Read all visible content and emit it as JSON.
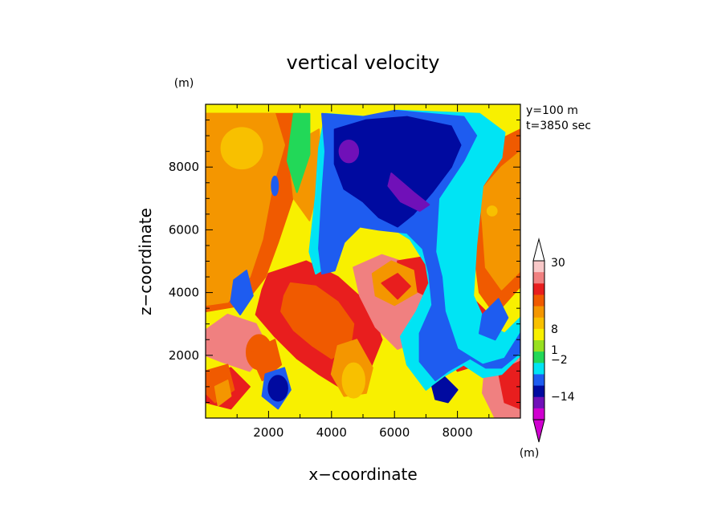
{
  "chart_data": {
    "type": "heatmap",
    "title": "vertical velocity",
    "xlabel": "x−coordinate",
    "ylabel": "z−coordinate",
    "x_unit": "(m)",
    "y_unit": "(m)",
    "annotations": [
      "y=100 m",
      "t=3850 sec"
    ],
    "xlim": [
      0,
      10000
    ],
    "ylim": [
      0,
      10000
    ],
    "xticks": [
      2000,
      4000,
      6000,
      8000
    ],
    "yticks": [
      2000,
      4000,
      6000,
      8000
    ],
    "grid": false,
    "colorbar": {
      "placement": "right",
      "unit": "(m)",
      "tick_labels": [
        "30",
        "8",
        "1",
        "−2",
        "−14"
      ],
      "colors_top_to_bottom": [
        "#f8c8c8",
        "#f08080",
        "#e81e1e",
        "#f05a00",
        "#f49600",
        "#f8c000",
        "#f8f000",
        "#98e020",
        "#22d858",
        "#00e4f4",
        "#1e5cf0",
        "#000aa0",
        "#7010b8",
        "#d000d0"
      ]
    },
    "regions": [
      {
        "level": 2,
        "shape": "poly",
        "points": [
          [
            2000,
            4600
          ],
          [
            3200,
            5000
          ],
          [
            4200,
            4500
          ],
          [
            5200,
            3600
          ],
          [
            5600,
            2500
          ],
          [
            5200,
            1500
          ],
          [
            4400,
            900
          ],
          [
            3600,
            1400
          ],
          [
            2900,
            1900
          ],
          [
            2200,
            2600
          ],
          [
            1600,
            3300
          ],
          [
            1800,
            4100
          ]
        ]
      },
      {
        "level": 3,
        "shape": "poly",
        "points": [
          [
            2700,
            4300
          ],
          [
            3500,
            4200
          ],
          [
            4200,
            3700
          ],
          [
            4700,
            3000
          ],
          [
            4600,
            2300
          ],
          [
            4000,
            1900
          ],
          [
            3400,
            2300
          ],
          [
            2800,
            2800
          ],
          [
            2400,
            3400
          ],
          [
            2500,
            3900
          ]
        ]
      },
      {
        "level": 1,
        "shape": "poly",
        "points": [
          [
            0,
            2800
          ],
          [
            700,
            3300
          ],
          [
            1600,
            3000
          ],
          [
            2000,
            2200
          ],
          [
            1400,
            1500
          ],
          [
            500,
            1800
          ],
          [
            0,
            2000
          ]
        ]
      },
      {
        "level": 2,
        "shape": "poly",
        "points": [
          [
            0,
            1300
          ],
          [
            800,
            1600
          ],
          [
            1400,
            1000
          ],
          [
            800,
            300
          ],
          [
            0,
            500
          ]
        ]
      },
      {
        "level": 3,
        "shape": "ellipse",
        "cx": 1700,
        "cy": 2100,
        "rx": 400,
        "ry": 550
      },
      {
        "level": 1,
        "shape": "poly",
        "points": [
          [
            4700,
            4800
          ],
          [
            5600,
            5200
          ],
          [
            6800,
            4800
          ],
          [
            7500,
            3800
          ],
          [
            7000,
            2600
          ],
          [
            6100,
            2200
          ],
          [
            5400,
            2900
          ],
          [
            4900,
            3900
          ]
        ]
      },
      {
        "level": 2,
        "shape": "poly",
        "points": [
          [
            6100,
            5000
          ],
          [
            7300,
            5200
          ],
          [
            7600,
            4300
          ],
          [
            7000,
            3900
          ],
          [
            6200,
            4300
          ]
        ]
      },
      {
        "level": 2,
        "shape": "poly",
        "points": [
          [
            7600,
            3200
          ],
          [
            8600,
            3700
          ],
          [
            9300,
            3000
          ],
          [
            9000,
            1800
          ],
          [
            8000,
            1500
          ],
          [
            7500,
            2300
          ]
        ]
      },
      {
        "level": 3,
        "shape": "poly",
        "points": [
          [
            8000,
            3000
          ],
          [
            8600,
            3300
          ],
          [
            9000,
            2700
          ],
          [
            8500,
            2100
          ],
          [
            8000,
            2400
          ]
        ]
      },
      {
        "level": 1,
        "shape": "poly",
        "points": [
          [
            8900,
            1900
          ],
          [
            9500,
            2500
          ],
          [
            10000,
            2200
          ],
          [
            10000,
            0
          ],
          [
            9200,
            0
          ],
          [
            8800,
            800
          ]
        ]
      },
      {
        "level": 2,
        "shape": "poly",
        "points": [
          [
            9300,
            1500
          ],
          [
            10000,
            1800
          ],
          [
            10000,
            300
          ],
          [
            9500,
            500
          ]
        ]
      },
      {
        "level": 3,
        "shape": "poly",
        "points": [
          [
            0,
            9700
          ],
          [
            3000,
            9700
          ],
          [
            3300,
            8400
          ],
          [
            2800,
            7100
          ],
          [
            2300,
            5600
          ],
          [
            1900,
            4500
          ],
          [
            1200,
            3600
          ],
          [
            0,
            3400
          ]
        ]
      },
      {
        "level": 4,
        "shape": "poly",
        "points": [
          [
            0,
            9700
          ],
          [
            2200,
            9700
          ],
          [
            2500,
            8700
          ],
          [
            2100,
            7300
          ],
          [
            1800,
            5700
          ],
          [
            1400,
            4500
          ],
          [
            700,
            3700
          ],
          [
            0,
            3600
          ]
        ]
      },
      {
        "level": 5,
        "shape": "ellipse",
        "cx": 1150,
        "cy": 8600,
        "rx": 650,
        "ry": 650
      },
      {
        "level": 4,
        "shape": "poly",
        "points": [
          [
            2900,
            8800
          ],
          [
            3600,
            9200
          ],
          [
            3700,
            7800
          ],
          [
            3300,
            6300
          ],
          [
            2800,
            7000
          ],
          [
            2700,
            8000
          ]
        ]
      },
      {
        "level": 8,
        "shape": "poly",
        "points": [
          [
            2800,
            9700
          ],
          [
            3300,
            9700
          ],
          [
            3300,
            8400
          ],
          [
            2900,
            7200
          ],
          [
            2600,
            8200
          ]
        ]
      },
      {
        "level": 3,
        "shape": "poly",
        "points": [
          [
            8300,
            7700
          ],
          [
            9200,
            8800
          ],
          [
            10000,
            9200
          ],
          [
            10000,
            4200
          ],
          [
            9200,
            3300
          ],
          [
            8700,
            4000
          ],
          [
            8500,
            5500
          ],
          [
            8200,
            6800
          ]
        ]
      },
      {
        "level": 4,
        "shape": "poly",
        "points": [
          [
            8700,
            7200
          ],
          [
            9400,
            8000
          ],
          [
            10000,
            8500
          ],
          [
            10000,
            4700
          ],
          [
            9400,
            4100
          ],
          [
            8900,
            4800
          ],
          [
            8800,
            6200
          ]
        ]
      },
      {
        "level": 5,
        "shape": "ellipse",
        "cx": 9100,
        "cy": 6600,
        "rx": 150,
        "ry": 150
      },
      {
        "level": 4,
        "shape": "poly",
        "points": [
          [
            5300,
            4600
          ],
          [
            5900,
            5000
          ],
          [
            6600,
            4700
          ],
          [
            6700,
            4000
          ],
          [
            6000,
            3600
          ],
          [
            5400,
            3900
          ]
        ]
      },
      {
        "level": 2,
        "shape": "poly",
        "points": [
          [
            5600,
            4300
          ],
          [
            6100,
            4600
          ],
          [
            6500,
            4200
          ],
          [
            6100,
            3800
          ]
        ]
      },
      {
        "level": 3,
        "shape": "poly",
        "points": [
          [
            1400,
            2100
          ],
          [
            2200,
            2500
          ],
          [
            2400,
            1700
          ],
          [
            1800,
            1200
          ]
        ]
      },
      {
        "level": 3,
        "shape": "poly",
        "points": [
          [
            0,
            1500
          ],
          [
            700,
            1700
          ],
          [
            900,
            900
          ],
          [
            300,
            500
          ],
          [
            0,
            800
          ]
        ]
      },
      {
        "level": 4,
        "shape": "poly",
        "points": [
          [
            300,
            1000
          ],
          [
            700,
            1200
          ],
          [
            800,
            700
          ],
          [
            400,
            400
          ]
        ]
      },
      {
        "level": 4,
        "shape": "poly",
        "points": [
          [
            4200,
            2300
          ],
          [
            4800,
            2500
          ],
          [
            5300,
            1600
          ],
          [
            5100,
            800
          ],
          [
            4400,
            700
          ],
          [
            4000,
            1400
          ]
        ]
      },
      {
        "level": 5,
        "shape": "ellipse",
        "cx": 4700,
        "cy": 1200,
        "rx": 350,
        "ry": 550
      },
      {
        "level": 9,
        "shape": "poly",
        "points": [
          [
            3800,
            9700
          ],
          [
            5100,
            9600
          ],
          [
            6100,
            9800
          ],
          [
            8700,
            9700
          ],
          [
            9500,
            9100
          ],
          [
            9400,
            8300
          ],
          [
            8800,
            7400
          ],
          [
            8600,
            5500
          ],
          [
            8500,
            3900
          ],
          [
            8900,
            3000
          ],
          [
            9500,
            2700
          ],
          [
            10000,
            3200
          ],
          [
            10000,
            2000
          ],
          [
            9400,
            1400
          ],
          [
            8800,
            1300
          ],
          [
            8200,
            1700
          ],
          [
            7500,
            1300
          ],
          [
            7000,
            900
          ],
          [
            6400,
            1700
          ],
          [
            6200,
            2600
          ],
          [
            6700,
            3400
          ],
          [
            7100,
            4300
          ],
          [
            7000,
            4900
          ],
          [
            6500,
            5700
          ],
          [
            5700,
            6200
          ],
          [
            4900,
            6400
          ],
          [
            4400,
            5800
          ],
          [
            4000,
            4900
          ],
          [
            3500,
            4600
          ],
          [
            3300,
            5300
          ],
          [
            3500,
            7100
          ],
          [
            3600,
            8600
          ]
        ]
      },
      {
        "level": 10,
        "shape": "poly",
        "points": [
          [
            3700,
            9700
          ],
          [
            5000,
            9600
          ],
          [
            6000,
            9800
          ],
          [
            8200,
            9600
          ],
          [
            8600,
            9000
          ],
          [
            8200,
            8200
          ],
          [
            7400,
            7000
          ],
          [
            7300,
            5300
          ],
          [
            7500,
            4500
          ],
          [
            7600,
            3400
          ],
          [
            8000,
            2200
          ],
          [
            8800,
            1700
          ],
          [
            9500,
            1900
          ],
          [
            10000,
            2700
          ],
          [
            10000,
            2100
          ],
          [
            9400,
            1600
          ],
          [
            8900,
            1600
          ],
          [
            8400,
            1900
          ],
          [
            7700,
            1500
          ],
          [
            7300,
            1200
          ],
          [
            6800,
            1800
          ],
          [
            6800,
            2700
          ],
          [
            7200,
            3600
          ],
          [
            7100,
            4600
          ],
          [
            6900,
            5400
          ],
          [
            6400,
            5900
          ],
          [
            5500,
            6000
          ],
          [
            4900,
            6100
          ],
          [
            4400,
            5600
          ],
          [
            4100,
            4700
          ],
          [
            3700,
            4600
          ],
          [
            3600,
            5400
          ],
          [
            3700,
            7100
          ],
          [
            3800,
            8500
          ]
        ]
      },
      {
        "level": 11,
        "shape": "poly",
        "points": [
          [
            4100,
            9200
          ],
          [
            5100,
            9500
          ],
          [
            6400,
            9600
          ],
          [
            7800,
            9300
          ],
          [
            8100,
            8700
          ],
          [
            7800,
            8000
          ],
          [
            7200,
            7200
          ],
          [
            6600,
            6500
          ],
          [
            6100,
            6100
          ],
          [
            5500,
            6400
          ],
          [
            5000,
            6900
          ],
          [
            4400,
            7300
          ],
          [
            4100,
            8100
          ]
        ]
      },
      {
        "level": 12,
        "shape": "ellipse",
        "cx": 4550,
        "cy": 8500,
        "rx": 300,
        "ry": 350
      },
      {
        "level": 12,
        "shape": "poly",
        "points": [
          [
            5900,
            7800
          ],
          [
            6600,
            7200
          ],
          [
            7100,
            6800
          ],
          [
            6800,
            6600
          ],
          [
            6200,
            6900
          ],
          [
            5800,
            7400
          ]
        ]
      },
      {
        "level": 11,
        "shape": "poly",
        "points": [
          [
            7200,
            1000
          ],
          [
            7600,
            1300
          ],
          [
            8000,
            900
          ],
          [
            7700,
            500
          ],
          [
            7300,
            600
          ]
        ]
      },
      {
        "level": 10,
        "shape": "poly",
        "points": [
          [
            1900,
            1400
          ],
          [
            2500,
            1600
          ],
          [
            2700,
            900
          ],
          [
            2300,
            300
          ],
          [
            1800,
            700
          ]
        ]
      },
      {
        "level": 11,
        "shape": "ellipse",
        "cx": 2300,
        "cy": 950,
        "rx": 300,
        "ry": 400
      },
      {
        "level": 10,
        "shape": "poly",
        "points": [
          [
            900,
            4400
          ],
          [
            1300,
            4700
          ],
          [
            1500,
            3900
          ],
          [
            1100,
            3300
          ],
          [
            800,
            3700
          ]
        ]
      },
      {
        "level": 10,
        "shape": "poly",
        "points": [
          [
            8800,
            3300
          ],
          [
            9300,
            3800
          ],
          [
            9600,
            3200
          ],
          [
            9200,
            2500
          ],
          [
            8700,
            2700
          ]
        ]
      },
      {
        "level": 10,
        "shape": "ellipse",
        "cx": 2200,
        "cy": 7400,
        "rx": 100,
        "ry": 300
      }
    ]
  }
}
